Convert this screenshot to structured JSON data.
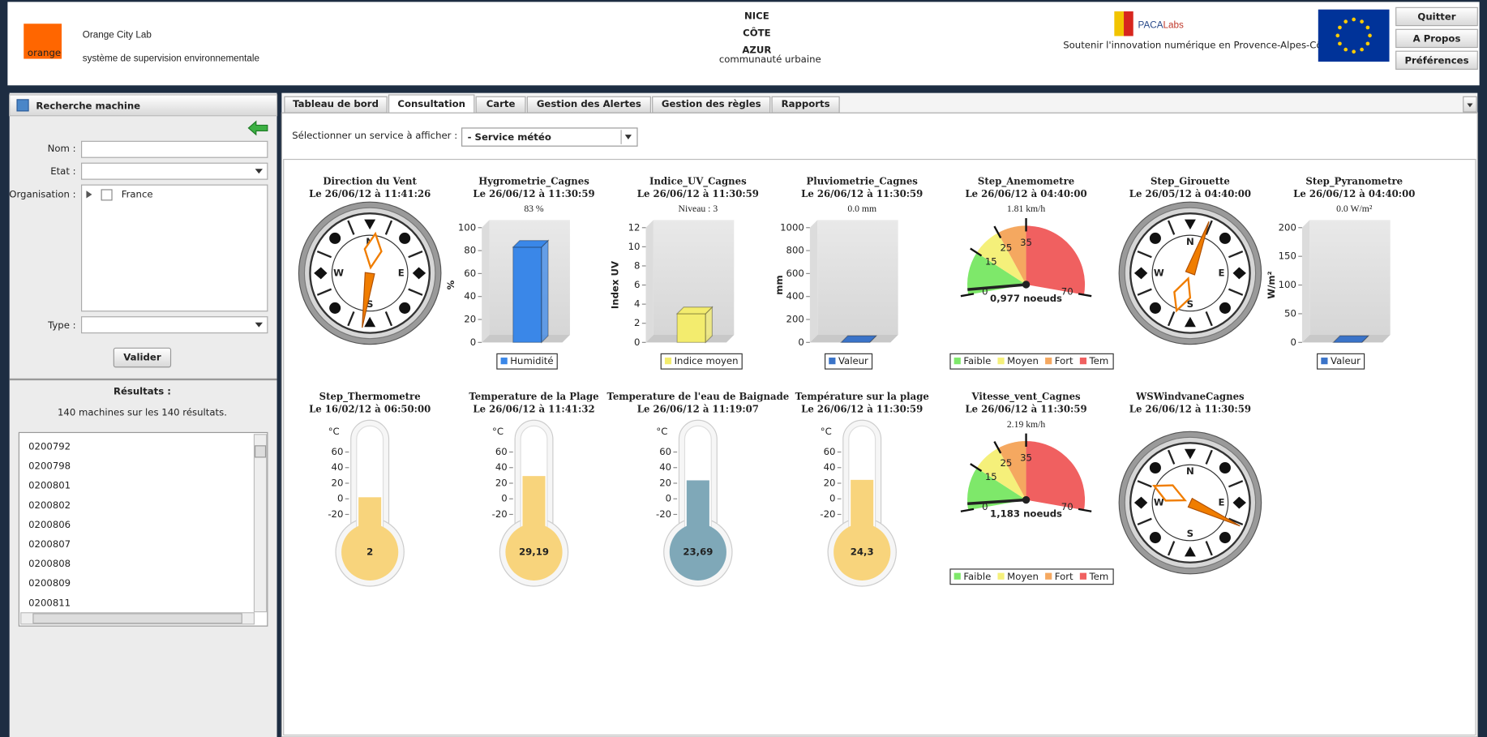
{
  "header": {
    "brand": "orange",
    "title": "Orange City Lab",
    "subtitle": "système de supervision environnementale",
    "nice": [
      "NICE",
      "CÔTE",
      "AZUR"
    ],
    "nice_sub": "communauté urbaine",
    "paca": [
      "PACA",
      "Labs"
    ],
    "paca_sub": "Soutenir l'innovation numérique en Provence-Alpes-Côte d'Azur",
    "buttons": [
      "Quitter",
      "A Propos",
      "Préférences"
    ]
  },
  "sidebar": {
    "title": "Recherche machine",
    "fields": [
      "Nom :",
      "Etat :",
      "Organisation :",
      "Type :"
    ],
    "tree_item": "France",
    "button": "Valider",
    "results_title": "Résultats :",
    "results_count": "140 machines sur les 140 résultats.",
    "results": [
      "0200792",
      "0200798",
      "0200801",
      "0200802",
      "0200806",
      "0200807",
      "0200808",
      "0200809",
      "0200811"
    ]
  },
  "tabs": {
    "items": [
      "Tableau de bord",
      "Consultation",
      "Carte",
      "Gestion des Alertes",
      "Gestion des règles",
      "Rapports"
    ],
    "active": 1
  },
  "service": {
    "label": "Sélectionner un service à afficher :",
    "selected": "- Service météo"
  },
  "compass_labels": [
    "N",
    "E",
    "S",
    "W"
  ],
  "widgets": [
    {
      "kind": "compass",
      "title": "Direction du Vent",
      "date": "Le 26/06/12 à 11:41:26",
      "needle_deg": 8
    },
    {
      "kind": "bar",
      "title": "Hygrometrie_Cagnes",
      "date": "Le 26/06/12 à 11:30:59",
      "value_label": "83 %",
      "value": 83,
      "ylim": [
        0,
        100
      ],
      "yticks": [
        0,
        20,
        40,
        60,
        80,
        100
      ],
      "y_label": "%",
      "legend": "Humidité",
      "color": "#3a87e8"
    },
    {
      "kind": "bar",
      "title": "Indice_UV_Cagnes",
      "date": "Le 26/06/12 à 11:30:59",
      "value_label": "Niveau : 3",
      "value": 3,
      "ylim": [
        0,
        12
      ],
      "yticks": [
        0,
        2,
        4,
        6,
        8,
        10,
        12
      ],
      "y_label": "Index UV",
      "legend": "Indice moyen",
      "color": "#f3ec6e"
    },
    {
      "kind": "bar",
      "title": "Pluviometrie_Cagnes",
      "date": "Le 26/06/12 à 11:30:59",
      "value_label": "0.0 mm",
      "value": 0,
      "ylim": [
        0,
        1000
      ],
      "yticks": [
        0,
        200,
        400,
        600,
        800,
        1000
      ],
      "y_label": "mm",
      "legend": "Valeur",
      "color": "#3a73c8"
    },
    {
      "kind": "gauge",
      "title": "Step_Anemometre",
      "date": "Le 26/06/12 à 04:40:00",
      "value_label": "1.81 km/h",
      "value": 1.81,
      "knots_label": "0,977 noeuds",
      "glim": [
        0,
        70
      ],
      "ticks": [
        0,
        15,
        25,
        35,
        70
      ],
      "legend": [
        "Faible",
        "Moyen",
        "Fort",
        "Tem"
      ],
      "band_colors": [
        "#7ee86a",
        "#f5f07a",
        "#f5a860",
        "#f06060"
      ]
    },
    {
      "kind": "compass",
      "title": "Step_Girouette",
      "date": "Le 26/05/12 à 04:40:00",
      "needle_deg": 200
    },
    {
      "kind": "bar",
      "title": "Step_Pyranometre",
      "date": "Le 26/06/12 à 04:40:00",
      "value_label": "0.0 W/m²",
      "value": 0,
      "ylim": [
        0,
        200
      ],
      "yticks": [
        0,
        50,
        100,
        150,
        200
      ],
      "y_label": "W/m²",
      "legend": "Valeur",
      "color": "#3a73c8"
    },
    {
      "kind": "thermo",
      "title": "Step_Thermometre",
      "date": "Le 16/02/12 à 06:50:00",
      "value": 2,
      "value_label": "2",
      "unit": "°C",
      "ylim": [
        -50,
        85
      ],
      "yticks": [
        60,
        40,
        20,
        0,
        -20
      ],
      "color": "#f8d47c"
    },
    {
      "kind": "thermo",
      "title": "Temperature de la Plage",
      "date": "Le 26/06/12 à 11:41:32",
      "value": 29.19,
      "value_label": "29,19",
      "unit": "°C",
      "ylim": [
        -50,
        85
      ],
      "yticks": [
        60,
        40,
        20,
        0,
        -20
      ],
      "color": "#f8d47c"
    },
    {
      "kind": "thermo",
      "title": "Temperature de l'eau de Baignade",
      "date": "Le 26/06/12 à 11:19:07",
      "value": 23.69,
      "value_label": "23,69",
      "unit": "°C",
      "ylim": [
        -50,
        85
      ],
      "yticks": [
        60,
        40,
        20,
        0,
        -20
      ],
      "color": "#7fa8b8"
    },
    {
      "kind": "thermo",
      "title": "Température sur la plage",
      "date": "Le 26/06/12 à 11:30:59",
      "value": 24.3,
      "value_label": "24,3",
      "unit": "°C",
      "ylim": [
        -50,
        85
      ],
      "yticks": [
        60,
        40,
        20,
        0,
        -20
      ],
      "color": "#f8d47c"
    },
    {
      "kind": "gauge",
      "title": "Vitesse_vent_Cagnes",
      "date": "Le 26/06/12 à 11:30:59",
      "value_label": "2.19 km/h",
      "value": 2.19,
      "knots_label": "1,183 noeuds",
      "glim": [
        0,
        70
      ],
      "ticks": [
        0,
        15,
        25,
        35,
        70
      ],
      "legend": [
        "Faible",
        "Moyen",
        "Fort",
        "Tem"
      ],
      "band_colors": [
        "#7ee86a",
        "#f5f07a",
        "#f5a860",
        "#f06060"
      ]
    },
    {
      "kind": "compass",
      "title": "WSWindvaneCagnes",
      "date": "Le 26/06/12 à 11:30:59",
      "needle_deg": 295
    }
  ]
}
